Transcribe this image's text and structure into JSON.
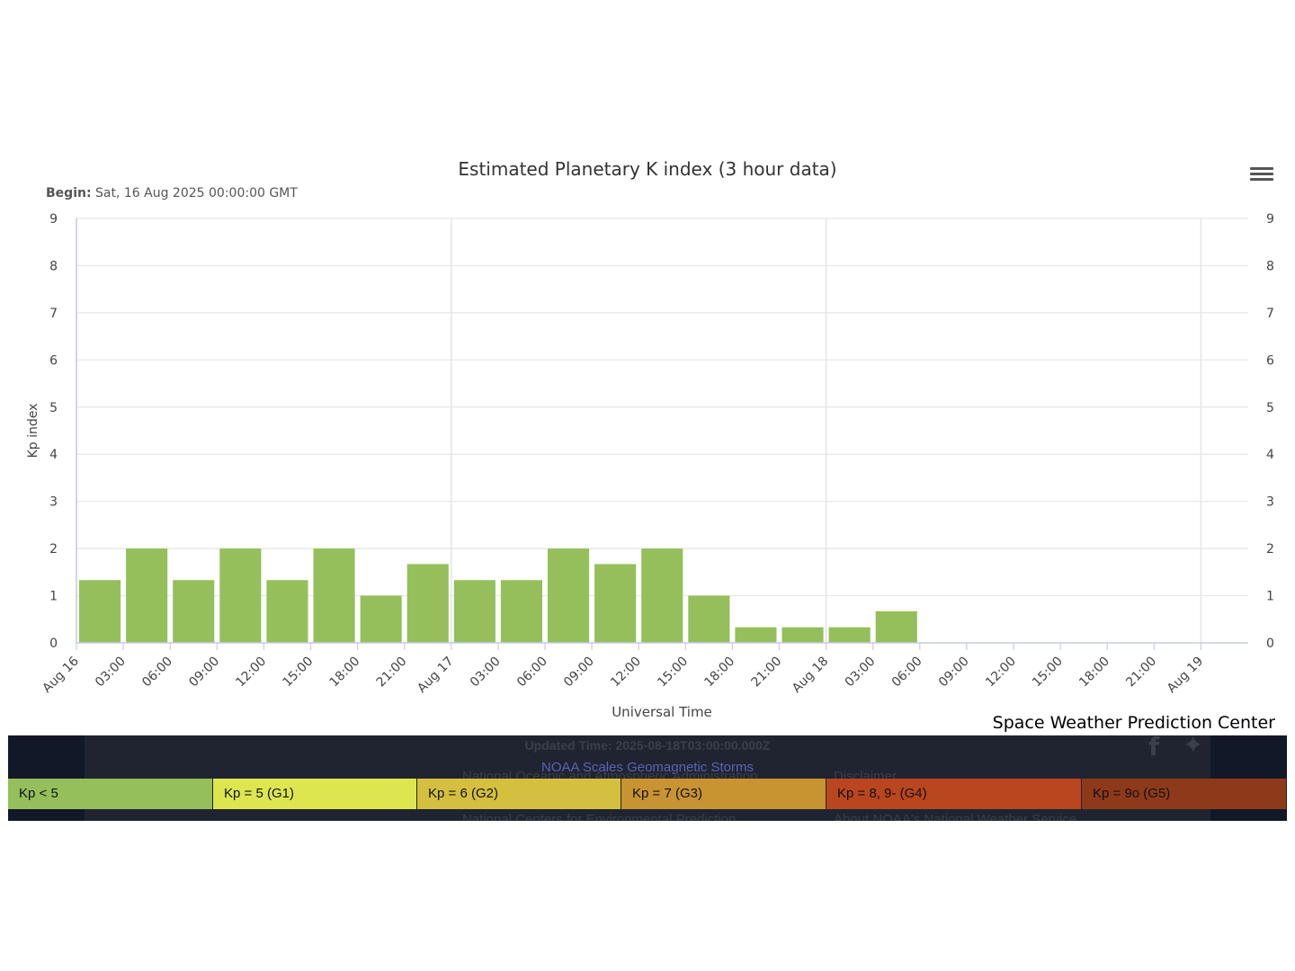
{
  "header": {
    "begin_label": "Begin:",
    "begin_value": "Sat, 16 Aug 2025 00:00:00 GMT",
    "menu_icon": "hamburger-menu-icon"
  },
  "chart_data": {
    "type": "bar",
    "title": "Estimated Planetary K index (3 hour data)",
    "xlabel": "Universal Time",
    "ylabel": "Kp index",
    "ylim": [
      0,
      9
    ],
    "yticks": [
      "0",
      "1",
      "2",
      "3",
      "4",
      "5",
      "6",
      "7",
      "8",
      "9"
    ],
    "xticks": [
      "Aug 16",
      "03:00",
      "06:00",
      "09:00",
      "12:00",
      "15:00",
      "18:00",
      "21:00",
      "Aug 17",
      "03:00",
      "06:00",
      "09:00",
      "12:00",
      "15:00",
      "18:00",
      "21:00",
      "Aug 18",
      "03:00",
      "06:00",
      "09:00",
      "12:00",
      "15:00",
      "18:00",
      "21:00",
      "Aug 19"
    ],
    "x": [
      "2025-08-16 00:00",
      "2025-08-16 03:00",
      "2025-08-16 06:00",
      "2025-08-16 09:00",
      "2025-08-16 12:00",
      "2025-08-16 15:00",
      "2025-08-16 18:00",
      "2025-08-16 21:00",
      "2025-08-17 00:00",
      "2025-08-17 03:00",
      "2025-08-17 06:00",
      "2025-08-17 09:00",
      "2025-08-17 12:00",
      "2025-08-17 15:00",
      "2025-08-17 18:00",
      "2025-08-17 21:00",
      "2025-08-18 00:00",
      "2025-08-18 03:00"
    ],
    "values": [
      1.33,
      2.0,
      1.33,
      2.0,
      1.33,
      2.0,
      1.0,
      1.67,
      1.33,
      1.33,
      2.0,
      1.67,
      2.0,
      1.0,
      0.33,
      0.33,
      0.33,
      0.67
    ],
    "bar_color": "#94bf5a",
    "grid": true,
    "legend": "none"
  },
  "credit": "Space Weather Prediction Center",
  "footer": {
    "updated": "Updated Time: 2025-08-18T03:00:00.000Z",
    "scales_link": "NOAA Scales Geomagnetic Storms",
    "noaa": "National Oceanic and Atmospheric Administration",
    "ncep": "National Centers for Environmental Prediction",
    "disclaimer": "Disclaimer",
    "about": "About NOAA's National Weather Service"
  },
  "kp_legend": [
    {
      "label": "Kp < 5",
      "color": "#94bf5a"
    },
    {
      "label": "Kp = 5 (G1)",
      "color": "#dde64e"
    },
    {
      "label": "Kp = 6 (G2)",
      "color": "#d4c03e"
    },
    {
      "label": "Kp = 7 (G3)",
      "color": "#c89432"
    },
    {
      "label": "Kp = 8, 9- (G4)",
      "color": "#b9461f"
    },
    {
      "label": "Kp = 9o (G5)",
      "color": "#8e3a1a"
    }
  ]
}
